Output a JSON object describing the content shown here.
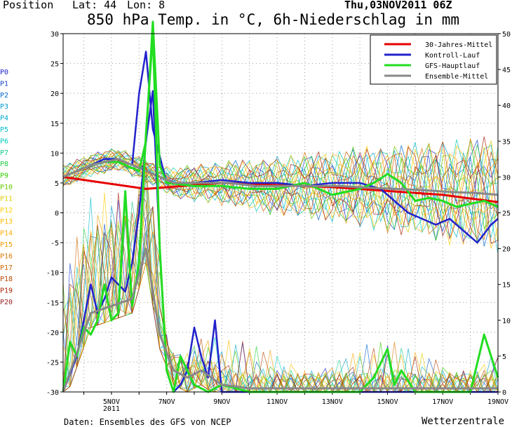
{
  "header": {
    "position_label": "Position",
    "lat_label": "Lat: 44",
    "lon_label": "Lon: 8",
    "date": "Thu,03NOV2011 06Z",
    "title": "850 hPa Temp. in °C, 6h-Niederschlag in mm"
  },
  "footer": {
    "source": "Daten: Ensembles des GFS von NCEP",
    "brand": "Wetterzentrale"
  },
  "member_labels": [
    "P0",
    "P1",
    "P2",
    "P3",
    "P4",
    "P5",
    "P6",
    "P7",
    "P8",
    "P9",
    "P10",
    "P11",
    "P12",
    "P13",
    "P14",
    "P15",
    "P16",
    "P17",
    "P18",
    "P19",
    "P20"
  ],
  "member_colors": [
    "#2222cc",
    "#1144cc",
    "#0066cc",
    "#0099cc",
    "#00aacc",
    "#00bbcc",
    "#00ccbb",
    "#11cc88",
    "#22cc44",
    "#33cc00",
    "#66cc00",
    "#ddcc00",
    "#ffcc00",
    "#ffbb00",
    "#ffaa00",
    "#ee9900",
    "#dd7700",
    "#cc6600",
    "#bb4400",
    "#aa2200",
    "#992222"
  ],
  "chart_data": {
    "type": "line",
    "title": "850 hPa Temp. in °C, 6h-Niederschlag in mm",
    "x_ticks": [
      "5NOV",
      "7NOV",
      "9NOV",
      "11NOV",
      "13NOV",
      "15NOV",
      "17NOV",
      "19NOV"
    ],
    "x_sublabel": "2011",
    "x_range_days": [
      3.25,
      19.0
    ],
    "y_left": {
      "range": [
        -30,
        30
      ],
      "ticks": [
        -30,
        -25,
        -20,
        -15,
        -10,
        -5,
        0,
        5,
        10,
        15,
        20,
        25,
        30
      ],
      "unit": "°C"
    },
    "y_right": {
      "range": [
        0,
        50
      ],
      "ticks": [
        0,
        5,
        10,
        15,
        20,
        25,
        30,
        35,
        40,
        45,
        50
      ],
      "unit": "mm"
    },
    "grid": true,
    "legend": {
      "placement": "top-right",
      "entries": [
        {
          "name": "30-Jahres-Mittel",
          "color": "#e60000"
        },
        {
          "name": "Kontroll-Lauf",
          "color": "#2222cc"
        },
        {
          "name": "GFS-Hauptlauf",
          "color": "#22dd22"
        },
        {
          "name": "Ensemble-Mittel",
          "color": "#888888"
        }
      ]
    },
    "series": [
      {
        "name": "30-Jahres-Mittel",
        "color": "#e60000",
        "axis": "left",
        "width": 3,
        "x": [
          3.25,
          6.25,
          9.0,
          13.0,
          17.0,
          19.0
        ],
        "y": [
          6.0,
          4.0,
          5.0,
          4.3,
          3.0,
          1.8
        ]
      },
      {
        "name": "Kontroll-Lauf",
        "color": "#2222cc",
        "axis": "left",
        "width": 2.5,
        "x": [
          3.25,
          3.75,
          4.25,
          4.75,
          5.25,
          5.75,
          6.0,
          6.25,
          6.5,
          7.0,
          8.0,
          9.0,
          10.0,
          11.0,
          12.0,
          13.0,
          14.0,
          14.75,
          15.25,
          15.75,
          16.25,
          16.75,
          17.25,
          17.75,
          18.25,
          18.75,
          19.0
        ],
        "y": [
          6,
          7,
          8,
          9,
          9,
          8,
          20,
          27,
          14,
          5,
          5,
          5.5,
          5,
          5,
          4.5,
          5,
          5,
          4,
          2,
          0,
          -1,
          -2,
          -1,
          -3,
          -5,
          -2,
          -1
        ]
      },
      {
        "name": "GFS-Hauptlauf",
        "color": "#22dd22",
        "axis": "left",
        "width": 3,
        "x": [
          3.25,
          3.75,
          4.25,
          4.75,
          5.25,
          5.75,
          6.0,
          6.25,
          6.5,
          6.75,
          7.0,
          8.0,
          9.0,
          10.0,
          11.0,
          12.0,
          13.0,
          14.0,
          14.5,
          15.0,
          15.5,
          16.0,
          16.5,
          17.0,
          17.5,
          18.0,
          18.5,
          19.0
        ],
        "y": [
          6,
          7,
          8,
          8.5,
          8.5,
          7.5,
          7,
          12,
          32,
          8,
          5,
          4.5,
          4.5,
          4,
          4,
          5,
          3,
          4,
          5,
          6.5,
          5,
          2,
          2.5,
          2,
          1,
          1.5,
          2,
          1
        ]
      },
      {
        "name": "Ensemble-Mittel",
        "color": "#888888",
        "axis": "left",
        "width": 3,
        "x": [
          3.25,
          4.25,
          5.25,
          6.25,
          7.25,
          8.25,
          9.25,
          10.25,
          11.25,
          12.25,
          13.25,
          14.25,
          15.25,
          16.25,
          17.25,
          18.25,
          19.0
        ],
        "y": [
          6,
          8,
          9,
          7,
          5,
          5,
          5,
          4.5,
          4.5,
          4.5,
          4.5,
          4.2,
          4,
          3.8,
          3.5,
          3.3,
          3
        ]
      },
      {
        "name": "Kontroll-Lauf Niederschlag",
        "color": "#2222cc",
        "axis": "right",
        "width": 2.5,
        "x": [
          3.25,
          3.75,
          4.25,
          4.5,
          4.75,
          5.0,
          5.5,
          5.75,
          6.0,
          6.25,
          6.5,
          6.75,
          7.0,
          7.25,
          7.5,
          7.75,
          8.0,
          8.25,
          8.5,
          8.75,
          9.0,
          9.5,
          10.0,
          12.0,
          14.0,
          15.0,
          17.0,
          19.0
        ],
        "y": [
          0,
          5,
          15,
          11,
          13,
          16,
          14,
          18,
          25,
          35,
          42,
          20,
          3,
          0,
          1,
          3,
          9,
          5,
          2,
          10,
          0,
          0,
          0,
          0,
          0,
          0,
          0,
          0
        ]
      },
      {
        "name": "GFS-Hauptlauf Niederschlag",
        "color": "#22dd22",
        "axis": "right",
        "width": 3,
        "x": [
          3.25,
          3.5,
          3.75,
          4.0,
          4.25,
          4.5,
          4.75,
          5.0,
          5.25,
          5.5,
          5.75,
          6.0,
          6.25,
          6.5,
          6.75,
          7.0,
          7.25,
          7.5,
          7.75,
          8.0,
          8.5,
          9.0,
          10.0,
          11.0,
          12.0,
          13.0,
          14.0,
          14.5,
          15.0,
          15.25,
          15.5,
          16.0,
          16.5,
          17.0,
          17.5,
          18.0,
          18.5,
          19.0
        ],
        "y": [
          0,
          7,
          5,
          9,
          8,
          10,
          15,
          10,
          11,
          28,
          12,
          18,
          36,
          50,
          20,
          3,
          0,
          5,
          3,
          1,
          0,
          1,
          0,
          0,
          0,
          0,
          0,
          2,
          6,
          1,
          3,
          0,
          0,
          0,
          0,
          0,
          8,
          2
        ]
      },
      {
        "name": "Ensemble-Mittel Niederschlag",
        "color": "#888888",
        "axis": "right",
        "width": 3,
        "x": [
          3.25,
          4.25,
          5.0,
          5.75,
          6.25,
          6.75,
          7.25,
          7.75,
          8.25,
          9.0,
          10.0,
          12.0,
          14.0,
          16.0,
          18.0,
          19.0
        ],
        "y": [
          0,
          11,
          12,
          13,
          20,
          8,
          3,
          2,
          3,
          1,
          0.5,
          0.5,
          0.5,
          0.5,
          0.5,
          0.5
        ]
      }
    ]
  }
}
